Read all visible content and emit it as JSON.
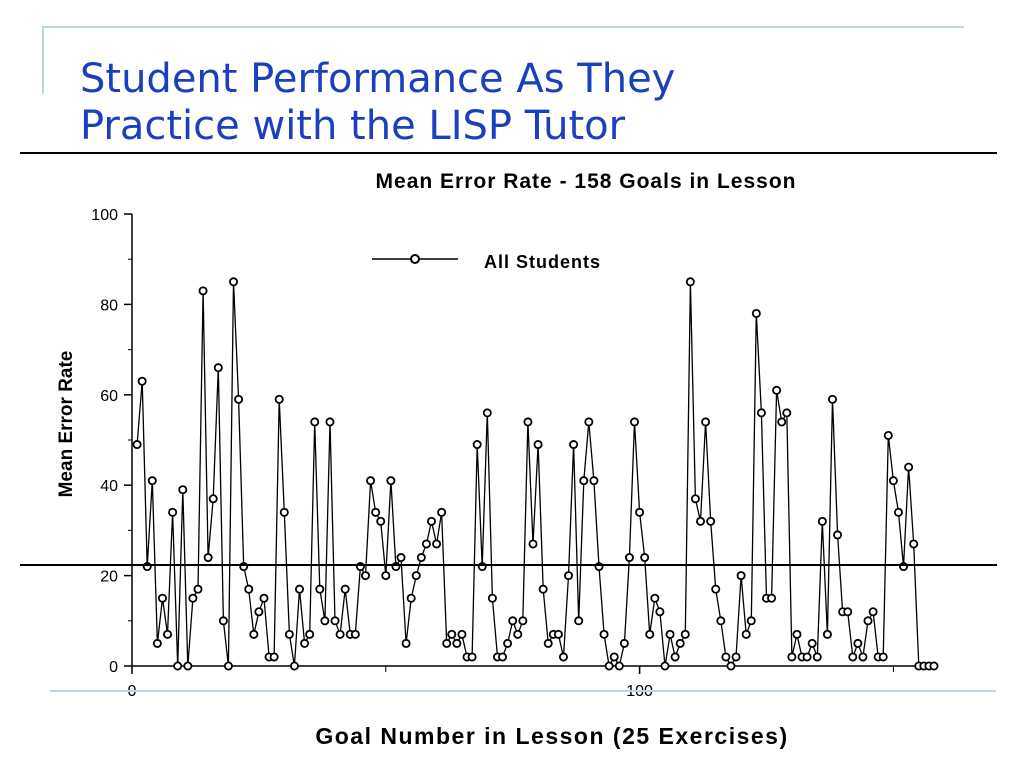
{
  "slide": {
    "title_line1": "Student Performance As They",
    "title_line2": "Practice with the LISP Tutor"
  },
  "colors": {
    "title": "#1a3fbf",
    "accent_line": "#b9d6e4",
    "plot": "#000000"
  },
  "chart_data": {
    "type": "line",
    "title": "Mean Error Rate - 158 Goals in Lesson",
    "xlabel": "Goal Number in Lesson (25 Exercises)",
    "ylabel": "Mean Error Rate",
    "ylim": [
      0,
      100
    ],
    "xlim": [
      0,
      158
    ],
    "y_ticks": [
      "0",
      "20",
      "40",
      "60",
      "80",
      "100"
    ],
    "x_ticks": [
      "0",
      "100"
    ],
    "grid": false,
    "legend": "top-center",
    "series": [
      {
        "name": "All Students",
        "marker": "open-circle",
        "x": [
          1,
          2,
          3,
          4,
          5,
          6,
          7,
          8,
          9,
          10,
          11,
          12,
          13,
          14,
          15,
          16,
          17,
          18,
          19,
          20,
          21,
          22,
          23,
          24,
          25,
          26,
          27,
          28,
          29,
          30,
          31,
          32,
          33,
          34,
          35,
          36,
          37,
          38,
          39,
          40,
          41,
          42,
          43,
          44,
          45,
          46,
          47,
          48,
          49,
          50,
          51,
          52,
          53,
          54,
          55,
          56,
          57,
          58,
          59,
          60,
          61,
          62,
          63,
          64,
          65,
          66,
          67,
          68,
          69,
          70,
          71,
          72,
          73,
          74,
          75,
          76,
          77,
          78,
          79,
          80,
          81,
          82,
          83,
          84,
          85,
          86,
          87,
          88,
          89,
          90,
          91,
          92,
          93,
          94,
          95,
          96,
          97,
          98,
          99,
          100,
          101,
          102,
          103,
          104,
          105,
          106,
          107,
          108,
          109,
          110,
          111,
          112,
          113,
          114,
          115,
          116,
          117,
          118,
          119,
          120,
          121,
          122,
          123,
          124,
          125,
          126,
          127,
          128,
          129,
          130,
          131,
          132,
          133,
          134,
          135,
          136,
          137,
          138,
          139,
          140,
          141,
          142,
          143,
          144,
          145,
          146,
          147,
          148,
          149,
          150,
          151,
          152,
          153,
          154,
          155,
          156,
          157,
          158
        ],
        "values": [
          49,
          63,
          22,
          41,
          5,
          15,
          7,
          34,
          0,
          39,
          0,
          15,
          17,
          83,
          24,
          37,
          66,
          10,
          0,
          85,
          59,
          22,
          17,
          7,
          12,
          15,
          2,
          2,
          59,
          34,
          7,
          0,
          17,
          5,
          7,
          54,
          17,
          10,
          54,
          10,
          7,
          17,
          7,
          7,
          22,
          20,
          41,
          34,
          32,
          20,
          41,
          22,
          24,
          5,
          15,
          20,
          24,
          27,
          32,
          27,
          34,
          5,
          7,
          5,
          7,
          2,
          2,
          49,
          22,
          56,
          15,
          2,
          2,
          5,
          10,
          7,
          10,
          54,
          27,
          49,
          17,
          5,
          7,
          7,
          2,
          20,
          49,
          10,
          41,
          54,
          41,
          22,
          7,
          0,
          2,
          0,
          5,
          24,
          54,
          34,
          24,
          7,
          15,
          12,
          0,
          7,
          2,
          5,
          7,
          85,
          37,
          32,
          54,
          32,
          17,
          10,
          2,
          0,
          2,
          20,
          7,
          10,
          78,
          56,
          15,
          15,
          61,
          54,
          56,
          2,
          7,
          2,
          2,
          5,
          2,
          32,
          7,
          59,
          29,
          12,
          12,
          2,
          5,
          2,
          10,
          12,
          2,
          2,
          51,
          41,
          34,
          22,
          44,
          27,
          0,
          0,
          0,
          0
        ]
      }
    ]
  }
}
